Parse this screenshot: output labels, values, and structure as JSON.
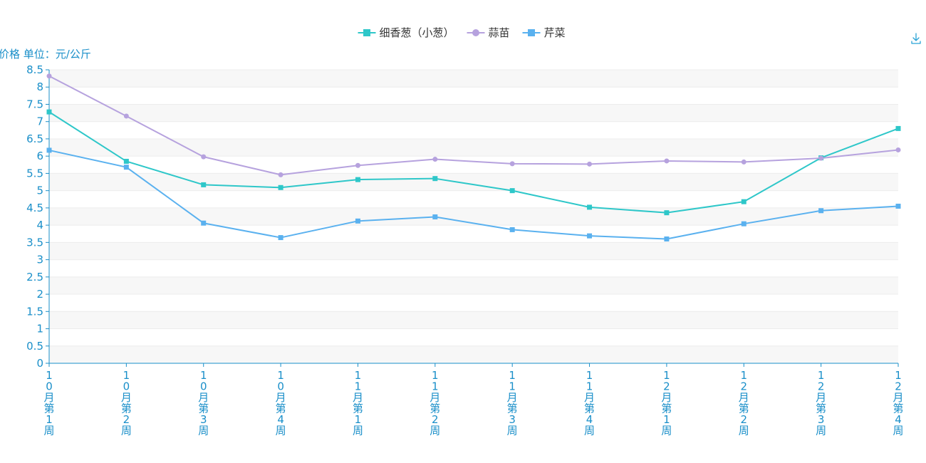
{
  "toolbar": {
    "download_icon": "download-icon"
  },
  "chart_data": {
    "type": "line",
    "ylabel": "价格 单位：元/公斤",
    "ylim": [
      0,
      8.5
    ],
    "ytick_step": 0.5,
    "grid": true,
    "legend_position": "top-center",
    "categories": [
      "10月第1周",
      "10月第2周",
      "10月第3周",
      "10月第4周",
      "11月第1周",
      "11月第2周",
      "11月第3周",
      "11月第4周",
      "12月第1周",
      "12月第2周",
      "12月第3周",
      "12月第4周"
    ],
    "series": [
      {
        "name": "细香葱（小葱）",
        "color": "#2ec7c9",
        "marker": "square",
        "values": [
          7.28,
          5.85,
          5.17,
          5.09,
          5.32,
          5.35,
          5.0,
          4.52,
          4.36,
          4.68,
          5.95,
          6.8
        ]
      },
      {
        "name": "蒜苗",
        "color": "#b6a2de",
        "marker": "circle",
        "values": [
          8.32,
          7.16,
          5.98,
          5.46,
          5.73,
          5.91,
          5.78,
          5.77,
          5.86,
          5.83,
          5.94,
          6.18
        ]
      },
      {
        "name": "芹菜",
        "color": "#5ab1ef",
        "marker": "square",
        "values": [
          6.17,
          5.68,
          4.06,
          3.64,
          4.12,
          4.24,
          3.87,
          3.69,
          3.6,
          4.04,
          4.42,
          4.55
        ]
      }
    ]
  }
}
